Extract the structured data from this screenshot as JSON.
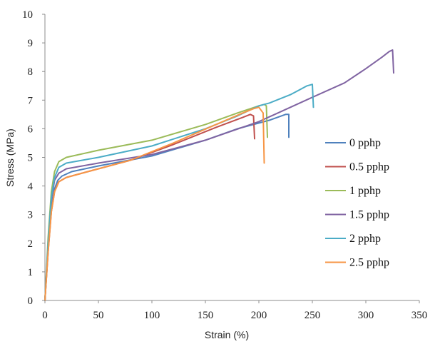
{
  "chart_data": {
    "type": "line",
    "title": "",
    "xlabel": "Strain (%)",
    "ylabel": "Stress (MPa)",
    "xlim": [
      0,
      350
    ],
    "ylim": [
      0,
      10
    ],
    "xticks": [
      0,
      50,
      100,
      150,
      200,
      250,
      300,
      350
    ],
    "yticks": [
      0,
      1,
      2,
      3,
      4,
      5,
      6,
      7,
      8,
      9,
      10
    ],
    "grid": false,
    "legend_position": "right",
    "series": [
      {
        "name": "0 pphp",
        "color": "#4F81BD",
        "points": [
          [
            0,
            0
          ],
          [
            3,
            1.8
          ],
          [
            6,
            3.2
          ],
          [
            9,
            3.9
          ],
          [
            12,
            4.2
          ],
          [
            16,
            4.35
          ],
          [
            25,
            4.5
          ],
          [
            50,
            4.7
          ],
          [
            100,
            5.05
          ],
          [
            150,
            5.6
          ],
          [
            180,
            6.0
          ],
          [
            210,
            6.3
          ],
          [
            225,
            6.5
          ],
          [
            228,
            6.5
          ],
          [
            228,
            5.7
          ]
        ]
      },
      {
        "name": "0.5 pphp",
        "color": "#C0504D",
        "points": [
          [
            0,
            0
          ],
          [
            3,
            1.7
          ],
          [
            6,
            3.1
          ],
          [
            9,
            3.8
          ],
          [
            13,
            4.15
          ],
          [
            20,
            4.3
          ],
          [
            40,
            4.5
          ],
          [
            80,
            4.9
          ],
          [
            120,
            5.45
          ],
          [
            160,
            6.05
          ],
          [
            185,
            6.4
          ],
          [
            192,
            6.5
          ],
          [
            195,
            6.45
          ],
          [
            196,
            5.65
          ]
        ]
      },
      {
        "name": "1 pphp",
        "color": "#9BBB59",
        "points": [
          [
            0,
            0
          ],
          [
            3,
            2.2
          ],
          [
            6,
            3.8
          ],
          [
            9,
            4.5
          ],
          [
            13,
            4.85
          ],
          [
            20,
            5.0
          ],
          [
            50,
            5.25
          ],
          [
            100,
            5.6
          ],
          [
            150,
            6.15
          ],
          [
            180,
            6.55
          ],
          [
            200,
            6.8
          ],
          [
            205,
            6.85
          ],
          [
            207,
            6.8
          ],
          [
            208,
            5.7
          ]
        ]
      },
      {
        "name": "1.5 pphp",
        "color": "#8064A2",
        "points": [
          [
            0,
            0
          ],
          [
            3,
            1.9
          ],
          [
            6,
            3.5
          ],
          [
            9,
            4.2
          ],
          [
            13,
            4.45
          ],
          [
            20,
            4.6
          ],
          [
            50,
            4.8
          ],
          [
            100,
            5.1
          ],
          [
            150,
            5.6
          ],
          [
            200,
            6.25
          ],
          [
            250,
            7.1
          ],
          [
            280,
            7.6
          ],
          [
            300,
            8.1
          ],
          [
            315,
            8.5
          ],
          [
            322,
            8.7
          ],
          [
            325,
            8.75
          ],
          [
            326,
            7.95
          ]
        ]
      },
      {
        "name": "2 pphp",
        "color": "#4BACC6",
        "points": [
          [
            0,
            0
          ],
          [
            3,
            2.0
          ],
          [
            6,
            3.6
          ],
          [
            9,
            4.3
          ],
          [
            13,
            4.65
          ],
          [
            20,
            4.8
          ],
          [
            50,
            5.0
          ],
          [
            100,
            5.4
          ],
          [
            150,
            6.0
          ],
          [
            180,
            6.45
          ],
          [
            200,
            6.8
          ],
          [
            210,
            6.9
          ],
          [
            230,
            7.2
          ],
          [
            245,
            7.5
          ],
          [
            250,
            7.55
          ],
          [
            251,
            6.75
          ]
        ]
      },
      {
        "name": "2.5 pphp",
        "color": "#F79646",
        "points": [
          [
            0,
            0
          ],
          [
            3,
            1.7
          ],
          [
            6,
            3.1
          ],
          [
            9,
            3.8
          ],
          [
            13,
            4.15
          ],
          [
            20,
            4.3
          ],
          [
            40,
            4.5
          ],
          [
            80,
            4.9
          ],
          [
            120,
            5.5
          ],
          [
            160,
            6.15
          ],
          [
            185,
            6.55
          ],
          [
            195,
            6.7
          ],
          [
            200,
            6.75
          ],
          [
            204,
            6.55
          ],
          [
            205,
            4.8
          ]
        ]
      }
    ]
  }
}
